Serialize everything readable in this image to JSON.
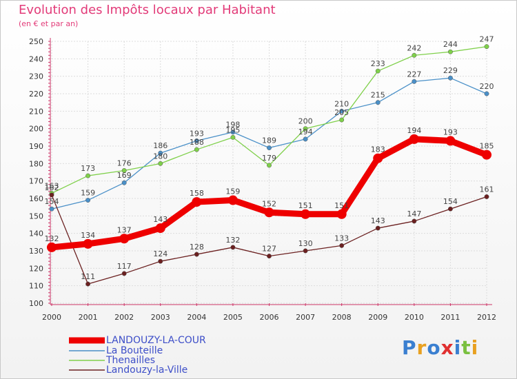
{
  "title": "Evolution des Impôts locaux par Habitant",
  "subtitle": "(en € et par an)",
  "logo": "Proxiti",
  "chart_data": {
    "type": "line",
    "x": [
      "2000",
      "2001",
      "2002",
      "2003",
      "2004",
      "2005",
      "2006",
      "2007",
      "2008",
      "2009",
      "2010",
      "2011",
      "2012"
    ],
    "ylim": [
      100,
      250
    ],
    "yticks": [
      100,
      110,
      120,
      130,
      140,
      150,
      160,
      170,
      180,
      190,
      200,
      210,
      220,
      230,
      240,
      250
    ],
    "grid": true,
    "legend_position": "bottom",
    "series": [
      {
        "name": "La Bouteille",
        "color": "#4a90c8",
        "values": [
          154,
          159,
          169,
          186,
          193,
          198,
          189,
          194,
          210,
          215,
          227,
          229,
          220
        ]
      },
      {
        "name": "Thenailles",
        "color": "#7fd04a",
        "values": [
          163,
          173,
          176,
          180,
          188,
          195,
          179,
          200,
          205,
          233,
          242,
          244,
          247
        ]
      },
      {
        "name": "Landouzy-la-Ville",
        "color": "#6b2020",
        "values": [
          162,
          111,
          117,
          124,
          128,
          132,
          127,
          130,
          133,
          143,
          147,
          154,
          161
        ]
      },
      {
        "name": "LANDOUZY-LA-COUR",
        "color": "#ee0000",
        "values": [
          132,
          134,
          137,
          143,
          158,
          159,
          152,
          151,
          151,
          183,
          194,
          193,
          185
        ]
      }
    ]
  }
}
